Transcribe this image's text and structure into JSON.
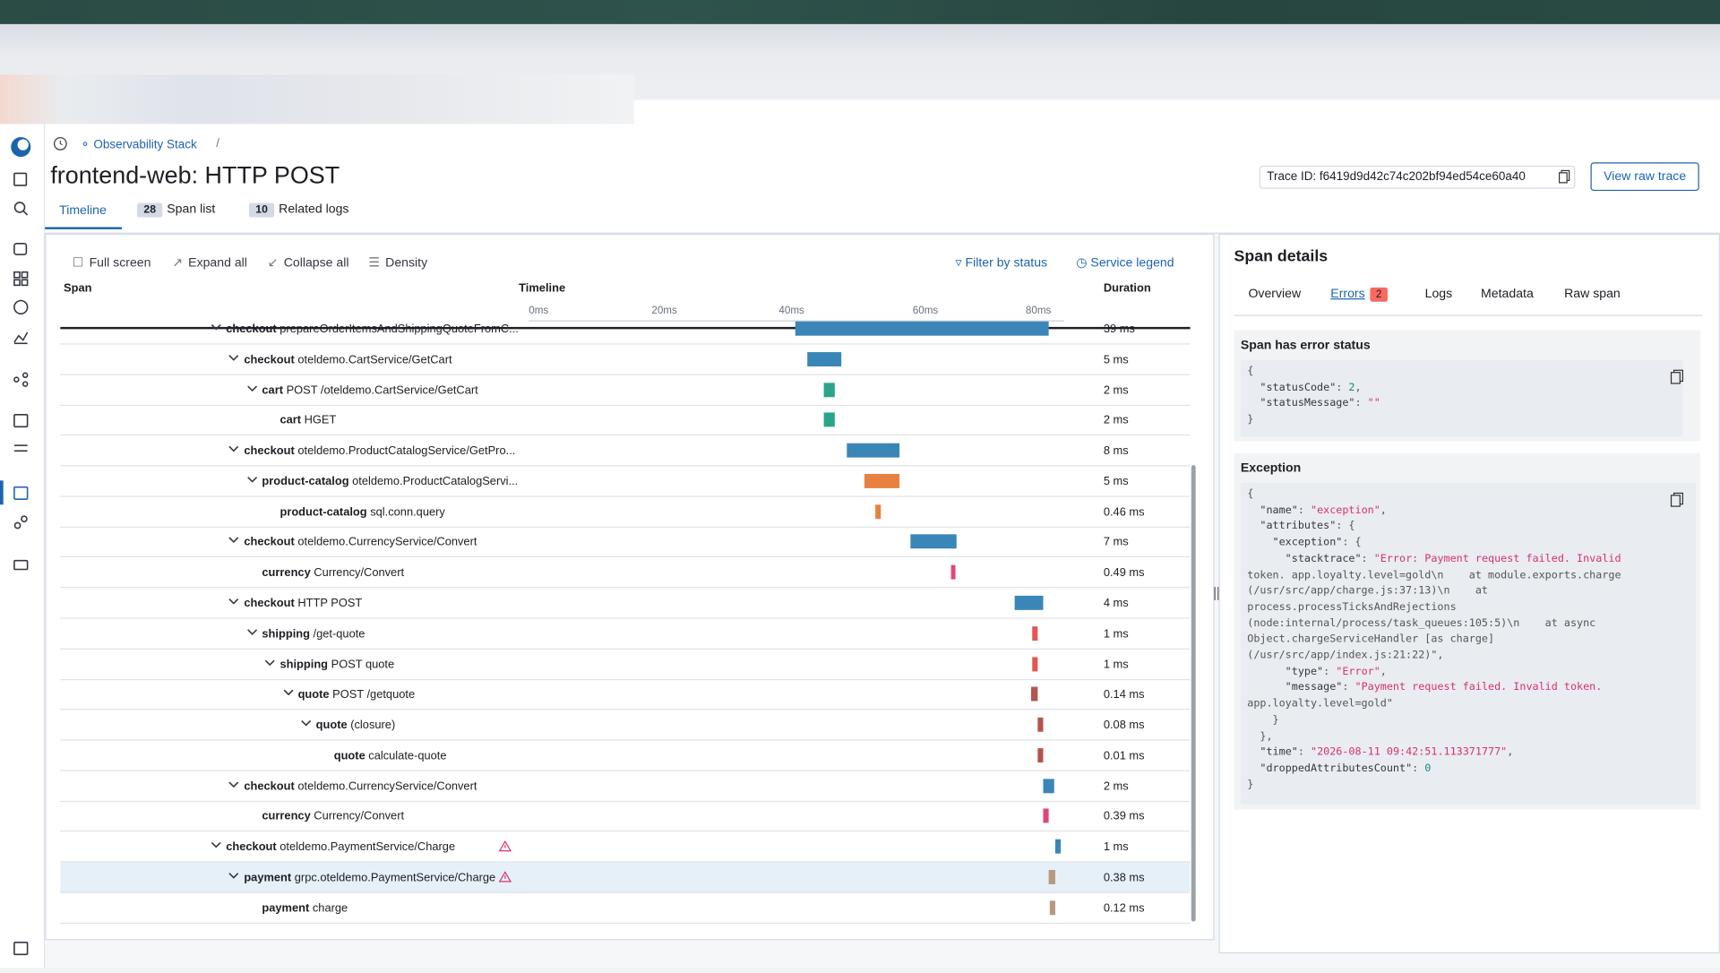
{
  "breadcrumb": {
    "link": "Observability Stack",
    "separator": "/"
  },
  "header": {
    "title": "frontend-web: HTTP POST",
    "trace_id": "Trace ID: f6419d9d42c74c202bf94ed54ce60a40",
    "raw_button": "View raw trace"
  },
  "tabs": [
    {
      "label": "Timeline"
    },
    {
      "count": 28,
      "label": "Span list"
    },
    {
      "count": 10,
      "label": "Related logs"
    }
  ],
  "toolbar": [
    "Full screen",
    "Expand all",
    "Collapse all",
    "Density"
  ],
  "toolbar_right": [
    "Filter by status",
    "Service legend"
  ],
  "columns": {
    "span": "Span",
    "timeline": "Timeline",
    "duration": "Duration"
  },
  "time_ticks": [
    "0ms",
    "20ms",
    "40ms",
    "60ms",
    "80ms"
  ],
  "spans": [
    {
      "service": "checkout",
      "operation": "prepareOrderItemsAndShippingQuoteFromC...",
      "duration": "39 ms"
    },
    {
      "service": "checkout",
      "operation": "oteldemo.CartService/GetCart",
      "duration": "5 ms"
    },
    {
      "service": "cart",
      "operation": "POST /oteldemo.CartService/GetCart",
      "duration": "2 ms"
    },
    {
      "service": "cart",
      "operation": "HGET",
      "duration": "2 ms"
    },
    {
      "service": "checkout",
      "operation": "oteldemo.ProductCatalogService/GetPro...",
      "duration": "8 ms"
    },
    {
      "service": "product-catalog",
      "operation": "oteldemo.ProductCatalogServi...",
      "duration": "5 ms"
    },
    {
      "service": "product-catalog",
      "operation": "sql.conn.query",
      "duration": "0.46 ms"
    },
    {
      "service": "checkout",
      "operation": "oteldemo.CurrencyService/Convert",
      "duration": "7 ms"
    },
    {
      "service": "currency",
      "operation": "Currency/Convert",
      "duration": "0.49 ms"
    },
    {
      "service": "checkout",
      "operation": "HTTP POST",
      "duration": "4 ms"
    },
    {
      "service": "shipping",
      "operation": "/get-quote",
      "duration": "1 ms"
    },
    {
      "service": "shipping",
      "operation": "POST quote",
      "duration": "1 ms"
    },
    {
      "service": "quote",
      "operation": "POST /getquote",
      "duration": "0.14 ms"
    },
    {
      "service": "quote",
      "operation": "(closure)",
      "duration": "0.08 ms"
    },
    {
      "service": "quote",
      "operation": "calculate-quote",
      "duration": "0.01 ms"
    },
    {
      "service": "checkout",
      "operation": "oteldemo.CurrencyService/Convert",
      "duration": "2 ms"
    },
    {
      "service": "currency",
      "operation": "Currency/Convert",
      "duration": "0.39 ms"
    },
    {
      "service": "checkout",
      "operation": "oteldemo.PaymentService/Charge",
      "duration": "1 ms"
    },
    {
      "service": "payment",
      "operation": "grpc.oteldemo.PaymentService/Charge",
      "duration": "0.38 ms"
    },
    {
      "service": "payment",
      "operation": "charge",
      "duration": "0.12 ms"
    }
  ],
  "details": {
    "title": "Span details",
    "tabs": [
      "Overview",
      "Errors",
      "Logs",
      "Metadata",
      "Raw span"
    ],
    "error_count": 2,
    "status_title": "Span has error status",
    "status_code": [
      "{",
      "  \"statusCode\": 2,",
      "  \"statusMessage\": \"\"",
      "}"
    ],
    "exception_title": "Exception",
    "exception_code": [
      "{",
      "  \"name\": \"exception\",",
      "  \"attributes\": {",
      "    \"exception\": {",
      "      \"stacktrace\": \"Error: Payment request failed. Invalid",
      "token. app.loyalty.level=gold\\n    at module.exports.charge",
      "(/usr/src/app/charge.js:37:13)\\n    at",
      "process.processTicksAndRejections",
      "(node:internal/process/task_queues:105:5)\\n    at async",
      "Object.chargeServiceHandler [as charge]",
      "(/usr/src/app/index.js:21:22)\",",
      "      \"type\": \"Error\",",
      "      \"message\": \"Payment request failed. Invalid token.",
      "app.loyalty.level=gold\"",
      "    }",
      "  },",
      "  \"time\": \"2026-08-11 09:42:51.113371777\",",
      "  \"droppedAttributesCount\": 0",
      "}"
    ]
  }
}
